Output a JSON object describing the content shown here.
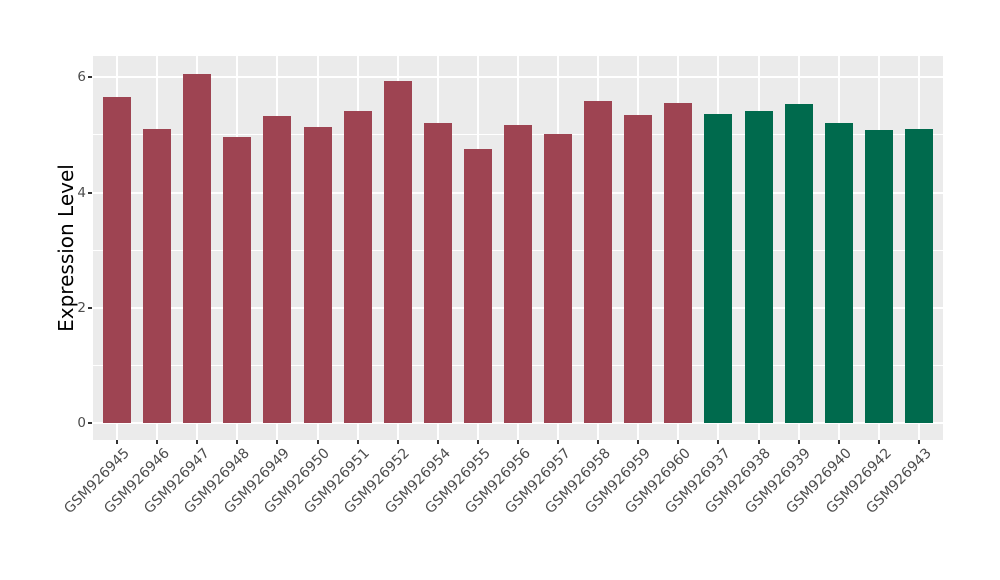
{
  "chart_data": {
    "type": "bar",
    "title": "",
    "xlabel": "",
    "ylabel": "Expression Level",
    "categories": [
      "GSM926945",
      "GSM926946",
      "GSM926947",
      "GSM926948",
      "GSM926949",
      "GSM926950",
      "GSM926951",
      "GSM926952",
      "GSM926954",
      "GSM926955",
      "GSM926956",
      "GSM926957",
      "GSM926958",
      "GSM926959",
      "GSM926960",
      "GSM926937",
      "GSM926938",
      "GSM926939",
      "GSM926940",
      "GSM926942",
      "GSM926943"
    ],
    "values": [
      5.66,
      5.1,
      6.06,
      4.96,
      5.32,
      5.14,
      5.42,
      5.94,
      5.2,
      4.75,
      5.18,
      5.02,
      5.58,
      5.34,
      5.56,
      5.36,
      5.42,
      5.54,
      5.2,
      5.08,
      5.1
    ],
    "bar_colors": [
      "#9E4452",
      "#9E4452",
      "#9E4452",
      "#9E4452",
      "#9E4452",
      "#9E4452",
      "#9E4452",
      "#9E4452",
      "#9E4452",
      "#9E4452",
      "#9E4452",
      "#9E4452",
      "#9E4452",
      "#9E4452",
      "#9E4452",
      "#006A4D",
      "#006A4D",
      "#006A4D",
      "#006A4D",
      "#006A4D",
      "#006A4D"
    ],
    "group_colors": {
      "left_group": "#9E4452",
      "right_group": "#006A4D"
    },
    "yticks_major": [
      0,
      2,
      4,
      6
    ],
    "yticks_minor": [
      1,
      3,
      5
    ],
    "ylim": [
      -0.3,
      6.37
    ],
    "grid": "on",
    "legend_position": "none",
    "panel_bg": "#EBEBEB",
    "grid_color": "#FFFFFF",
    "tick_mark_color": "#333333",
    "tick_label_color": "#4D4D4D",
    "axis_title_color": "#000000"
  }
}
